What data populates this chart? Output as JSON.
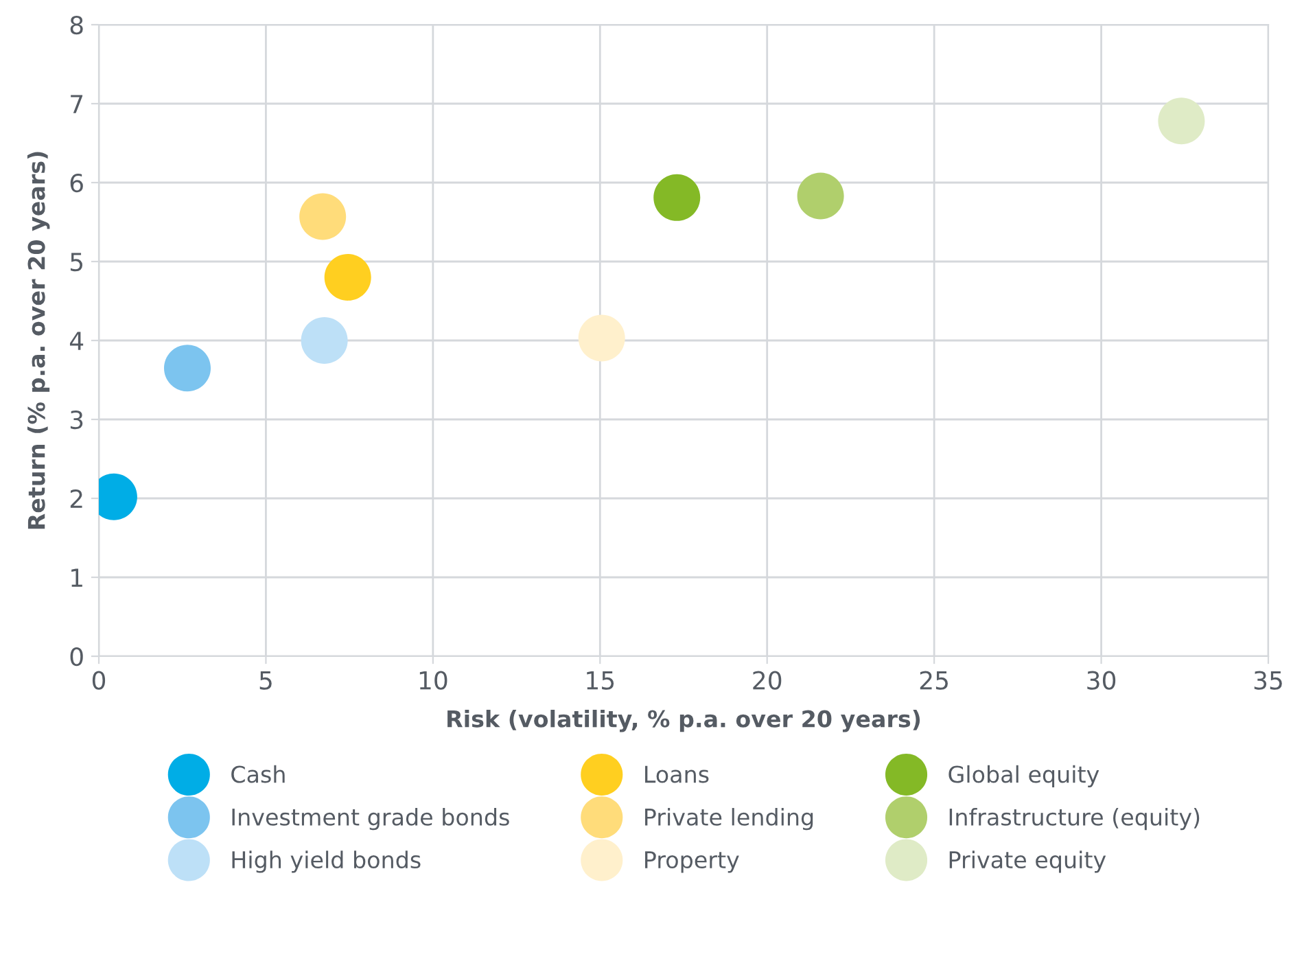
{
  "chart_data": {
    "type": "scatter",
    "xlabel": "Risk (volatility, % p.a. over 20 years)",
    "ylabel": "Return (% p.a. over 20 years)",
    "xlim": [
      0,
      35
    ],
    "xticks": [
      0,
      5,
      10,
      15,
      20,
      25,
      30,
      35
    ],
    "ylim": [
      0,
      8
    ],
    "yticks": [
      0,
      1,
      2,
      3,
      4,
      5,
      6,
      7,
      8
    ],
    "grid": true,
    "legend": "bottom",
    "marker": "circle",
    "series": [
      {
        "name": "Cash",
        "color": "#00ade6",
        "x": [
          0.45
        ],
        "values": [
          2.02
        ]
      },
      {
        "name": "Investment grade bonds",
        "color": "#7cc4ef",
        "x": [
          2.65
        ],
        "values": [
          3.65
        ]
      },
      {
        "name": "High yield bonds",
        "color": "#bde0f7",
        "x": [
          6.75
        ],
        "values": [
          4.0
        ]
      },
      {
        "name": "Loans",
        "color": "#ffcf20",
        "x": [
          7.45
        ],
        "values": [
          4.8
        ]
      },
      {
        "name": "Private lending",
        "color": "#ffdc7a",
        "x": [
          6.7
        ],
        "values": [
          5.57
        ]
      },
      {
        "name": "Property",
        "color": "#fff0cc",
        "x": [
          15.05
        ],
        "values": [
          4.03
        ]
      },
      {
        "name": "Global equity",
        "color": "#84b926",
        "x": [
          17.3
        ],
        "values": [
          5.81
        ]
      },
      {
        "name": "Infrastructure (equity)",
        "color": "#b0cf6c",
        "x": [
          21.6
        ],
        "values": [
          5.83
        ]
      },
      {
        "name": "Private equity",
        "color": "#dfebc6",
        "x": [
          32.4
        ],
        "values": [
          6.78
        ]
      }
    ]
  }
}
